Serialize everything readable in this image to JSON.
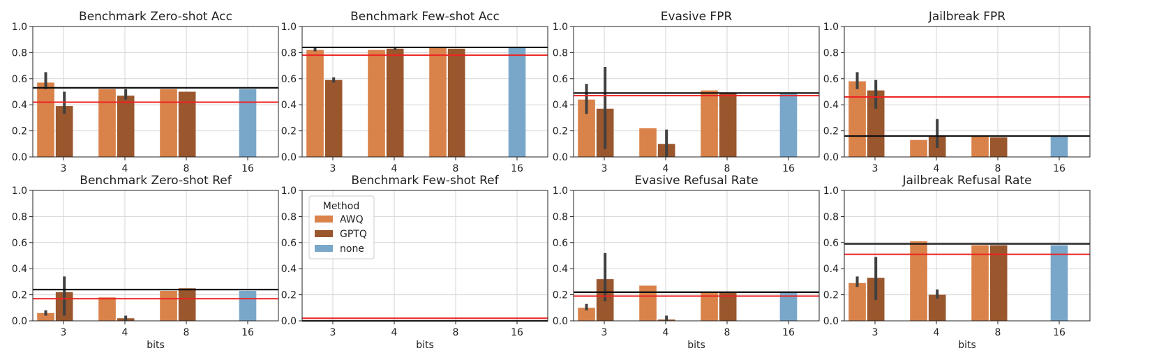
{
  "legend": {
    "title": "Method",
    "entries": [
      {
        "label": "AWQ",
        "color": "#d9824a"
      },
      {
        "label": "GPTQ",
        "color": "#9a562d"
      },
      {
        "label": "none",
        "color": "#79a7c9"
      }
    ]
  },
  "ref_colors": {
    "black": "#111111",
    "red": "#ee2222"
  },
  "chart_data": [
    {
      "type": "bar",
      "title": "Benchmark Zero-shot Acc",
      "xlabel": "",
      "ylim": [
        0,
        1
      ],
      "yticks": [
        "0.0",
        "0.2",
        "0.4",
        "0.6",
        "0.8",
        "1.0"
      ],
      "categories": [
        "3",
        "4",
        "8",
        "16"
      ],
      "series": [
        {
          "name": "AWQ",
          "values": [
            0.57,
            0.52,
            0.52,
            null
          ],
          "err": [
            [
              0.52,
              0.65
            ],
            null,
            null,
            null
          ]
        },
        {
          "name": "GPTQ",
          "values": [
            0.39,
            0.47,
            0.5,
            null
          ],
          "err": [
            [
              0.33,
              0.5
            ],
            [
              0.44,
              0.52
            ],
            null,
            null
          ]
        },
        {
          "name": "none",
          "values": [
            null,
            null,
            null,
            0.52
          ],
          "err": [
            null,
            null,
            null,
            null
          ]
        }
      ],
      "hlines": {
        "black": 0.53,
        "red": 0.42
      }
    },
    {
      "type": "bar",
      "title": "Benchmark Few-shot Acc",
      "xlabel": "",
      "ylim": [
        0,
        1
      ],
      "yticks": [
        "0.0",
        "0.2",
        "0.4",
        "0.6",
        "0.8",
        "1.0"
      ],
      "categories": [
        "3",
        "4",
        "8",
        "16"
      ],
      "series": [
        {
          "name": "AWQ",
          "values": [
            0.82,
            0.82,
            0.84,
            null
          ],
          "err": [
            [
              0.81,
              0.84
            ],
            null,
            null,
            null
          ]
        },
        {
          "name": "GPTQ",
          "values": [
            0.59,
            0.83,
            0.83,
            null
          ],
          "err": [
            [
              0.57,
              0.61
            ],
            [
              0.82,
              0.84
            ],
            null,
            null
          ]
        },
        {
          "name": "none",
          "values": [
            null,
            null,
            null,
            0.84
          ],
          "err": [
            null,
            null,
            null,
            null
          ]
        }
      ],
      "hlines": {
        "black": 0.84,
        "red": 0.78
      }
    },
    {
      "type": "bar",
      "title": "Evasive FPR",
      "xlabel": "",
      "ylim": [
        0,
        1
      ],
      "yticks": [
        "0.0",
        "0.2",
        "0.4",
        "0.6",
        "0.8",
        "1.0"
      ],
      "categories": [
        "3",
        "4",
        "8",
        "16"
      ],
      "series": [
        {
          "name": "AWQ",
          "values": [
            0.44,
            0.22,
            0.51,
            null
          ],
          "err": [
            [
              0.33,
              0.56
            ],
            null,
            null,
            null
          ]
        },
        {
          "name": "GPTQ",
          "values": [
            0.37,
            0.1,
            0.49,
            null
          ],
          "err": [
            [
              0.06,
              0.69
            ],
            [
              0.0,
              0.21
            ],
            null,
            null
          ]
        },
        {
          "name": "none",
          "values": [
            null,
            null,
            null,
            0.49
          ],
          "err": [
            null,
            null,
            null,
            null
          ]
        }
      ],
      "hlines": {
        "black": 0.49,
        "red": 0.47
      }
    },
    {
      "type": "bar",
      "title": "Jailbreak FPR",
      "xlabel": "",
      "ylim": [
        0,
        1
      ],
      "yticks": [
        "0.0",
        "0.2",
        "0.4",
        "0.6",
        "0.8",
        "1.0"
      ],
      "categories": [
        "3",
        "4",
        "8",
        "16"
      ],
      "series": [
        {
          "name": "AWQ",
          "values": [
            0.58,
            0.13,
            0.16,
            null
          ],
          "err": [
            [
              0.52,
              0.65
            ],
            null,
            null,
            null
          ]
        },
        {
          "name": "GPTQ",
          "values": [
            0.51,
            0.16,
            0.15,
            null
          ],
          "err": [
            [
              0.37,
              0.59
            ],
            [
              0.07,
              0.29
            ],
            null,
            null
          ]
        },
        {
          "name": "none",
          "values": [
            null,
            null,
            null,
            0.16
          ],
          "err": [
            null,
            null,
            null,
            null
          ]
        }
      ],
      "hlines": {
        "black": 0.16,
        "red": 0.46
      }
    },
    {
      "type": "bar",
      "title": "Benchmark Zero-shot Ref",
      "xlabel": "bits",
      "ylim": [
        0,
        1
      ],
      "yticks": [
        "0.0",
        "0.2",
        "0.4",
        "0.6",
        "0.8",
        "1.0"
      ],
      "categories": [
        "3",
        "4",
        "8",
        "16"
      ],
      "series": [
        {
          "name": "AWQ",
          "values": [
            0.06,
            0.18,
            0.23,
            null
          ],
          "err": [
            [
              0.04,
              0.08
            ],
            null,
            null,
            null
          ]
        },
        {
          "name": "GPTQ",
          "values": [
            0.22,
            0.02,
            0.25,
            null
          ],
          "err": [
            [
              0.04,
              0.34
            ],
            [
              0.0,
              0.04
            ],
            null,
            null
          ]
        },
        {
          "name": "none",
          "values": [
            null,
            null,
            null,
            0.23
          ],
          "err": [
            null,
            null,
            null,
            null
          ]
        }
      ],
      "hlines": {
        "black": 0.24,
        "red": 0.17
      }
    },
    {
      "type": "bar",
      "title": "Benchmark Few-shot Ref",
      "xlabel": "bits",
      "ylim": [
        0,
        1
      ],
      "yticks": [
        "0.0",
        "0.2",
        "0.4",
        "0.6",
        "0.8",
        "1.0"
      ],
      "categories": [
        "3",
        "4",
        "8",
        "16"
      ],
      "series": [
        {
          "name": "AWQ",
          "values": [
            0.0,
            0.0,
            0.0,
            null
          ],
          "err": [
            null,
            null,
            null,
            null
          ]
        },
        {
          "name": "GPTQ",
          "values": [
            0.0,
            0.0,
            0.0,
            null
          ],
          "err": [
            null,
            null,
            null,
            null
          ]
        },
        {
          "name": "none",
          "values": [
            null,
            null,
            null,
            0.0
          ],
          "err": [
            null,
            null,
            null,
            null
          ]
        }
      ],
      "hlines": {
        "black": 0.0,
        "red": 0.02
      },
      "legend": true
    },
    {
      "type": "bar",
      "title": "Evasive Refusal Rate",
      "xlabel": "bits",
      "ylim": [
        0,
        1
      ],
      "yticks": [
        "0.0",
        "0.2",
        "0.4",
        "0.6",
        "0.8",
        "1.0"
      ],
      "categories": [
        "3",
        "4",
        "8",
        "16"
      ],
      "series": [
        {
          "name": "AWQ",
          "values": [
            0.1,
            0.27,
            0.22,
            null
          ],
          "err": [
            [
              0.08,
              0.13
            ],
            null,
            null,
            null
          ]
        },
        {
          "name": "GPTQ",
          "values": [
            0.32,
            0.01,
            0.22,
            null
          ],
          "err": [
            [
              0.15,
              0.52
            ],
            [
              0.0,
              0.04
            ],
            null,
            null
          ]
        },
        {
          "name": "none",
          "values": [
            null,
            null,
            null,
            0.22
          ],
          "err": [
            null,
            null,
            null,
            null
          ]
        }
      ],
      "hlines": {
        "black": 0.22,
        "red": 0.19
      }
    },
    {
      "type": "bar",
      "title": "Jailbreak Refusal Rate",
      "xlabel": "bits",
      "ylim": [
        0,
        1
      ],
      "yticks": [
        "0.0",
        "0.2",
        "0.4",
        "0.6",
        "0.8",
        "1.0"
      ],
      "categories": [
        "3",
        "4",
        "8",
        "16"
      ],
      "series": [
        {
          "name": "AWQ",
          "values": [
            0.29,
            0.61,
            0.58,
            null
          ],
          "err": [
            [
              0.26,
              0.34
            ],
            null,
            null,
            null
          ]
        },
        {
          "name": "GPTQ",
          "values": [
            0.33,
            0.2,
            0.58,
            null
          ],
          "err": [
            [
              0.16,
              0.49
            ],
            [
              0.17,
              0.24
            ],
            null,
            null
          ]
        },
        {
          "name": "none",
          "values": [
            null,
            null,
            null,
            0.58
          ],
          "err": [
            null,
            null,
            null,
            null
          ]
        }
      ],
      "hlines": {
        "black": 0.59,
        "red": 0.51
      }
    }
  ]
}
